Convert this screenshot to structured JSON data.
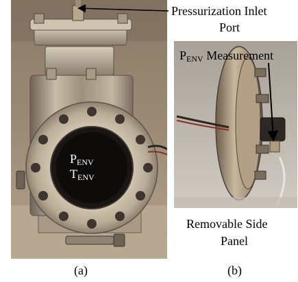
{
  "labels": {
    "inlet_line1": "Pressurization Inlet",
    "inlet_line2": "Port",
    "penv_measurement_p": "P",
    "penv_measurement_sub": "ENV",
    "penv_measurement_rest": " Measurement",
    "removable_line1": "Removable Side",
    "removable_line2": "Panel",
    "caption_a": "(a)",
    "caption_b": "(b)"
  },
  "overlay": {
    "p_letter": "P",
    "p_sub": "ENV",
    "t_letter": "T",
    "t_sub": "ENV"
  }
}
